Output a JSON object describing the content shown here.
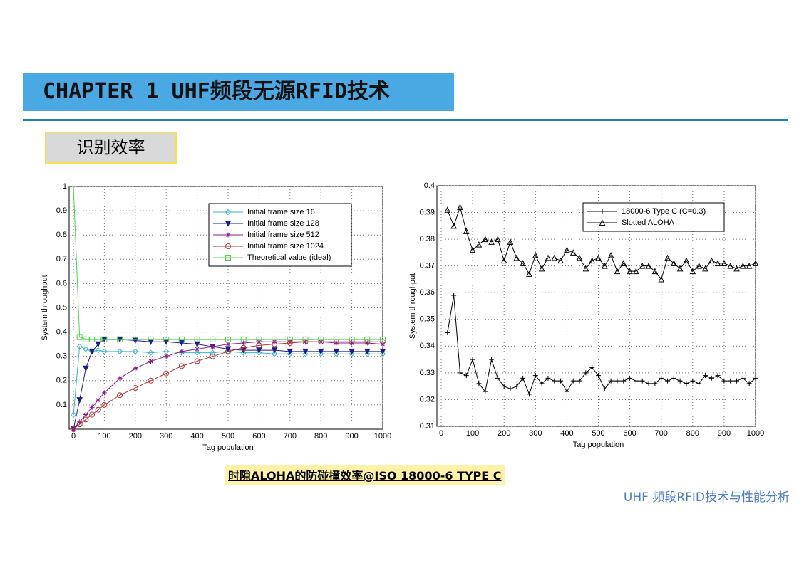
{
  "header": {
    "title": "CHAPTER 1  UHF频段无源RFID技术",
    "tag": "识别效率"
  },
  "chart_data": [
    {
      "type": "line",
      "xlabel": "Tag population",
      "ylabel": "System throughput",
      "xlim": [
        0,
        1000
      ],
      "ylim": [
        0,
        1
      ],
      "xticks": [
        0,
        100,
        200,
        300,
        400,
        500,
        600,
        700,
        800,
        900,
        1000
      ],
      "yticks": [
        0.1,
        0.2,
        0.3,
        0.4,
        0.5,
        0.6,
        0.7,
        0.8,
        0.9,
        1
      ],
      "grid": true,
      "legend": "upper right",
      "x": [
        0,
        20,
        40,
        60,
        80,
        100,
        150,
        200,
        250,
        300,
        350,
        400,
        450,
        500,
        550,
        600,
        650,
        700,
        750,
        800,
        850,
        900,
        950,
        1000
      ],
      "series": [
        {
          "name": "Initial frame size 16",
          "color": "#3cb4c8",
          "marker": "diamond",
          "values": [
            0.06,
            0.34,
            0.33,
            0.32,
            0.325,
            0.32,
            0.32,
            0.32,
            0.315,
            0.32,
            0.315,
            0.315,
            0.315,
            0.32,
            0.315,
            0.315,
            0.31,
            0.31,
            0.31,
            0.31,
            0.31,
            0.31,
            0.31,
            0.31
          ]
        },
        {
          "name": "Initial frame size 128",
          "color": "#1c1c8c",
          "marker": "tri-down",
          "values": [
            0,
            0.12,
            0.25,
            0.32,
            0.35,
            0.37,
            0.37,
            0.365,
            0.36,
            0.36,
            0.355,
            0.35,
            0.34,
            0.33,
            0.325,
            0.325,
            0.325,
            0.32,
            0.32,
            0.32,
            0.32,
            0.32,
            0.32,
            0.32
          ]
        },
        {
          "name": "Initial frame size 512",
          "color": "#8c1c8c",
          "marker": "star",
          "values": [
            0,
            0.03,
            0.06,
            0.09,
            0.12,
            0.15,
            0.21,
            0.25,
            0.28,
            0.3,
            0.32,
            0.33,
            0.34,
            0.35,
            0.355,
            0.36,
            0.36,
            0.36,
            0.36,
            0.36,
            0.355,
            0.355,
            0.355,
            0.35
          ]
        },
        {
          "name": "Initial frame size 1024",
          "color": "#b43232",
          "marker": "circle",
          "values": [
            0,
            0.02,
            0.04,
            0.06,
            0.08,
            0.1,
            0.14,
            0.17,
            0.2,
            0.23,
            0.26,
            0.28,
            0.3,
            0.32,
            0.335,
            0.345,
            0.35,
            0.355,
            0.36,
            0.36,
            0.36,
            0.36,
            0.36,
            0.36
          ]
        },
        {
          "name": "Theoretical value (ideal)",
          "color": "#4cd24c",
          "marker": "square",
          "values": [
            1,
            0.38,
            0.37,
            0.37,
            0.37,
            0.37,
            0.37,
            0.37,
            0.37,
            0.37,
            0.37,
            0.37,
            0.37,
            0.37,
            0.37,
            0.37,
            0.37,
            0.37,
            0.37,
            0.37,
            0.37,
            0.37,
            0.37,
            0.37
          ]
        }
      ]
    },
    {
      "type": "line",
      "xlabel": "Tag population",
      "ylabel": "System throughput",
      "xlim": [
        0,
        1000
      ],
      "ylim": [
        0.31,
        0.4
      ],
      "xticks": [
        0,
        100,
        200,
        300,
        400,
        500,
        600,
        700,
        800,
        900,
        1000
      ],
      "yticks": [
        0.31,
        0.32,
        0.33,
        0.34,
        0.35,
        0.36,
        0.37,
        0.38,
        0.39,
        0.4
      ],
      "grid": true,
      "legend": "upper right",
      "x": [
        20,
        40,
        60,
        80,
        100,
        120,
        140,
        160,
        180,
        200,
        220,
        240,
        260,
        280,
        300,
        320,
        340,
        360,
        380,
        400,
        420,
        440,
        460,
        480,
        500,
        520,
        540,
        560,
        580,
        600,
        620,
        640,
        660,
        680,
        700,
        720,
        740,
        760,
        780,
        800,
        820,
        840,
        860,
        880,
        900,
        920,
        940,
        960,
        980,
        1000
      ],
      "series": [
        {
          "name": "18000-6 Type C (C=0.3)",
          "color": "#000000",
          "marker": "plus",
          "values": [
            0.345,
            0.359,
            0.33,
            0.329,
            0.335,
            0.326,
            0.323,
            0.335,
            0.328,
            0.325,
            0.324,
            0.325,
            0.328,
            0.322,
            0.329,
            0.326,
            0.328,
            0.327,
            0.327,
            0.323,
            0.327,
            0.327,
            0.33,
            0.332,
            0.329,
            0.324,
            0.327,
            0.327,
            0.327,
            0.328,
            0.327,
            0.327,
            0.326,
            0.326,
            0.328,
            0.327,
            0.328,
            0.327,
            0.326,
            0.327,
            0.326,
            0.329,
            0.328,
            0.329,
            0.327,
            0.327,
            0.327,
            0.328,
            0.326,
            0.328
          ]
        },
        {
          "name": "Slotted ALOHA",
          "color": "#000000",
          "marker": "tri-up",
          "values": [
            0.391,
            0.385,
            0.392,
            0.383,
            0.376,
            0.378,
            0.38,
            0.379,
            0.38,
            0.372,
            0.379,
            0.373,
            0.371,
            0.367,
            0.374,
            0.369,
            0.373,
            0.373,
            0.372,
            0.376,
            0.375,
            0.373,
            0.369,
            0.372,
            0.373,
            0.37,
            0.374,
            0.368,
            0.371,
            0.368,
            0.368,
            0.37,
            0.37,
            0.368,
            0.365,
            0.373,
            0.371,
            0.369,
            0.372,
            0.368,
            0.37,
            0.369,
            0.372,
            0.371,
            0.371,
            0.37,
            0.369,
            0.37,
            0.37,
            0.371
          ]
        }
      ]
    }
  ],
  "caption": "时隙ALOHA的防碰撞效率@ISO 18000-6 TYPE C",
  "footer": "UHF 频段RFID技术与性能分析"
}
